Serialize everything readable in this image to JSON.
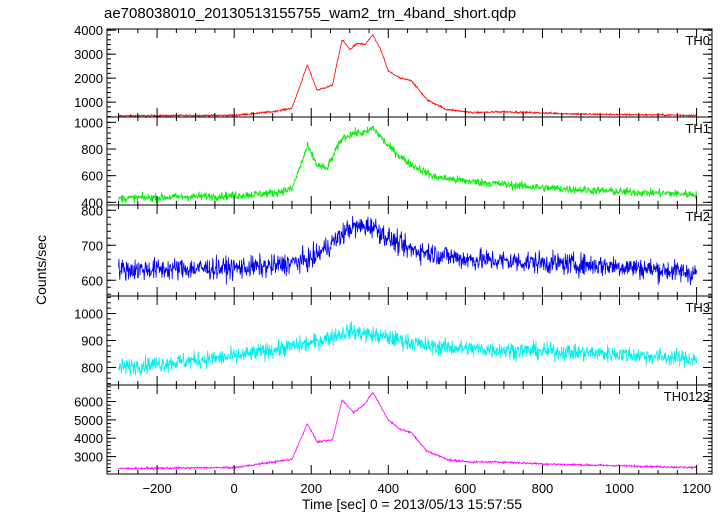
{
  "chart_data": {
    "type": "line",
    "title": "ae708038010_20130513155755_wam2_trn_4band_short.qdp",
    "xlabel": "Time [sec] 0 = 2013/05/13 15:57:55",
    "ylabel": "Counts/sec",
    "xlim": [
      -330,
      1240
    ],
    "x_ticks": [
      -200,
      0,
      200,
      400,
      600,
      800,
      1000,
      1200
    ],
    "x_tick_labels": [
      "−200",
      "0",
      "200",
      "400",
      "600",
      "800",
      "1000",
      "1200"
    ],
    "x_range": [
      -300,
      1200
    ],
    "panels": [
      {
        "name": "TH0",
        "color": "#ff0000",
        "ylim": [
          380,
          4050
        ],
        "y_ticks": [
          1000,
          2000,
          3000,
          4000
        ],
        "y_tick_labels": [
          "1000",
          "2000",
          "3000",
          "4000"
        ],
        "noise": 35,
        "profile": [
          [
            -300,
            430
          ],
          [
            0,
            450
          ],
          [
            100,
            600
          ],
          [
            150,
            750
          ],
          [
            190,
            2550
          ],
          [
            215,
            1500
          ],
          [
            255,
            1700
          ],
          [
            280,
            3600
          ],
          [
            300,
            3200
          ],
          [
            320,
            3450
          ],
          [
            340,
            3400
          ],
          [
            360,
            3800
          ],
          [
            380,
            3200
          ],
          [
            400,
            2300
          ],
          [
            430,
            2000
          ],
          [
            460,
            1900
          ],
          [
            500,
            1100
          ],
          [
            550,
            700
          ],
          [
            620,
            560
          ],
          [
            700,
            600
          ],
          [
            780,
            560
          ],
          [
            900,
            500
          ],
          [
            1200,
            450
          ]
        ]
      },
      {
        "name": "TH1",
        "color": "#00ee00",
        "ylim": [
          380,
          1040
        ],
        "y_ticks": [
          400,
          600,
          800,
          1000
        ],
        "y_tick_labels": [
          "400",
          "600",
          "800",
          "1000"
        ],
        "noise": 30,
        "profile": [
          [
            -300,
            430
          ],
          [
            0,
            450
          ],
          [
            100,
            470
          ],
          [
            150,
            500
          ],
          [
            190,
            820
          ],
          [
            215,
            680
          ],
          [
            240,
            650
          ],
          [
            280,
            880
          ],
          [
            310,
            920
          ],
          [
            340,
            920
          ],
          [
            360,
            960
          ],
          [
            400,
            820
          ],
          [
            450,
            700
          ],
          [
            520,
            590
          ],
          [
            600,
            560
          ],
          [
            800,
            510
          ],
          [
            1000,
            480
          ],
          [
            1200,
            460
          ]
        ]
      },
      {
        "name": "TH2",
        "color": "#0000ee",
        "ylim": [
          555,
          815
        ],
        "y_ticks": [
          600,
          700,
          800
        ],
        "y_tick_labels": [
          "600",
          "700",
          "800"
        ],
        "noise": 30,
        "profile": [
          [
            -300,
            630
          ],
          [
            0,
            635
          ],
          [
            100,
            640
          ],
          [
            200,
            660
          ],
          [
            270,
            720
          ],
          [
            300,
            750
          ],
          [
            360,
            755
          ],
          [
            400,
            720
          ],
          [
            450,
            690
          ],
          [
            600,
            660
          ],
          [
            800,
            650
          ],
          [
            1000,
            640
          ],
          [
            1200,
            620
          ]
        ]
      },
      {
        "name": "TH3",
        "color": "#00eeee",
        "ylim": [
          735,
          1065
        ],
        "y_ticks": [
          800,
          900,
          1000
        ],
        "y_tick_labels": [
          "800",
          "900",
          "1000"
        ],
        "noise": 30,
        "profile": [
          [
            -300,
            800
          ],
          [
            0,
            840
          ],
          [
            200,
            890
          ],
          [
            300,
            935
          ],
          [
            400,
            910
          ],
          [
            500,
            880
          ],
          [
            600,
            870
          ],
          [
            800,
            860
          ],
          [
            1000,
            850
          ],
          [
            1200,
            830
          ]
        ]
      },
      {
        "name": "TH0123",
        "color": "#ff00ff",
        "ylim": [
          2050,
          6900
        ],
        "y_ticks": [
          3000,
          4000,
          5000,
          6000
        ],
        "y_tick_labels": [
          "3000",
          "4000",
          "5000",
          "6000"
        ],
        "noise": 50,
        "profile": [
          [
            -300,
            2350
          ],
          [
            0,
            2400
          ],
          [
            100,
            2700
          ],
          [
            150,
            2850
          ],
          [
            190,
            4800
          ],
          [
            215,
            3800
          ],
          [
            255,
            3900
          ],
          [
            280,
            6100
          ],
          [
            310,
            5400
          ],
          [
            340,
            5900
          ],
          [
            360,
            6500
          ],
          [
            400,
            5000
          ],
          [
            430,
            4500
          ],
          [
            460,
            4300
          ],
          [
            500,
            3300
          ],
          [
            560,
            2800
          ],
          [
            620,
            2700
          ],
          [
            700,
            2700
          ],
          [
            800,
            2600
          ],
          [
            1000,
            2500
          ],
          [
            1200,
            2400
          ]
        ]
      }
    ]
  }
}
